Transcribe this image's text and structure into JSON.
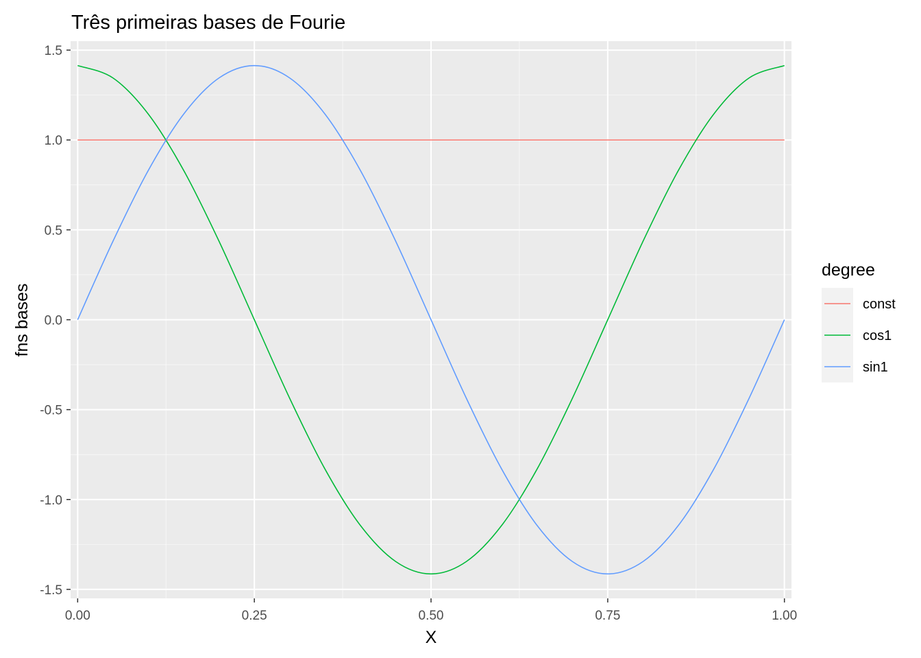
{
  "chart_data": {
    "type": "line",
    "title": "Três primeiras bases de Fourie",
    "xlabel": "X",
    "ylabel": "fns bases",
    "xlim": [
      -0.01,
      1.01
    ],
    "ylim": [
      -1.55,
      1.55
    ],
    "x_ticks": [
      0,
      0.25,
      0.5,
      0.75,
      1
    ],
    "x_tick_labels": [
      "0.00",
      "0.25",
      "0.50",
      "0.75",
      "1.00"
    ],
    "y_ticks": [
      1.5,
      1.0,
      0.5,
      0.0,
      -0.5,
      -1.0,
      -1.5
    ],
    "y_tick_labels": [
      "1.5",
      "1.0",
      "0.5",
      "0.0",
      "-0.5",
      "-1.0",
      "-1.5"
    ],
    "grid": true,
    "legend": {
      "title": "degree",
      "position": "right"
    },
    "x": [
      0,
      0.05,
      0.1,
      0.15,
      0.2,
      0.25,
      0.3,
      0.35,
      0.4,
      0.45,
      0.5,
      0.55,
      0.6,
      0.65,
      0.7,
      0.75,
      0.8,
      0.85,
      0.9,
      0.95,
      1.0
    ],
    "series": [
      {
        "name": "const",
        "color": "#F8766D",
        "values": [
          1,
          1,
          1,
          1,
          1,
          1,
          1,
          1,
          1,
          1,
          1,
          1,
          1,
          1,
          1,
          1,
          1,
          1,
          1,
          1,
          1
        ]
      },
      {
        "name": "cos1",
        "color": "#00BA38",
        "values": [
          1.414,
          1.345,
          1.144,
          0.831,
          0.437,
          0.0,
          -0.437,
          -0.831,
          -1.144,
          -1.345,
          -1.414,
          -1.345,
          -1.144,
          -0.831,
          -0.437,
          0.0,
          0.437,
          0.831,
          1.144,
          1.345,
          1.414
        ]
      },
      {
        "name": "sin1",
        "color": "#619CFF",
        "values": [
          0.0,
          0.437,
          0.831,
          1.144,
          1.345,
          1.414,
          1.345,
          1.144,
          0.831,
          0.437,
          0.0,
          -0.437,
          -0.831,
          -1.144,
          -1.345,
          -1.414,
          -1.345,
          -1.144,
          -0.831,
          -0.437,
          0.0
        ]
      }
    ]
  }
}
